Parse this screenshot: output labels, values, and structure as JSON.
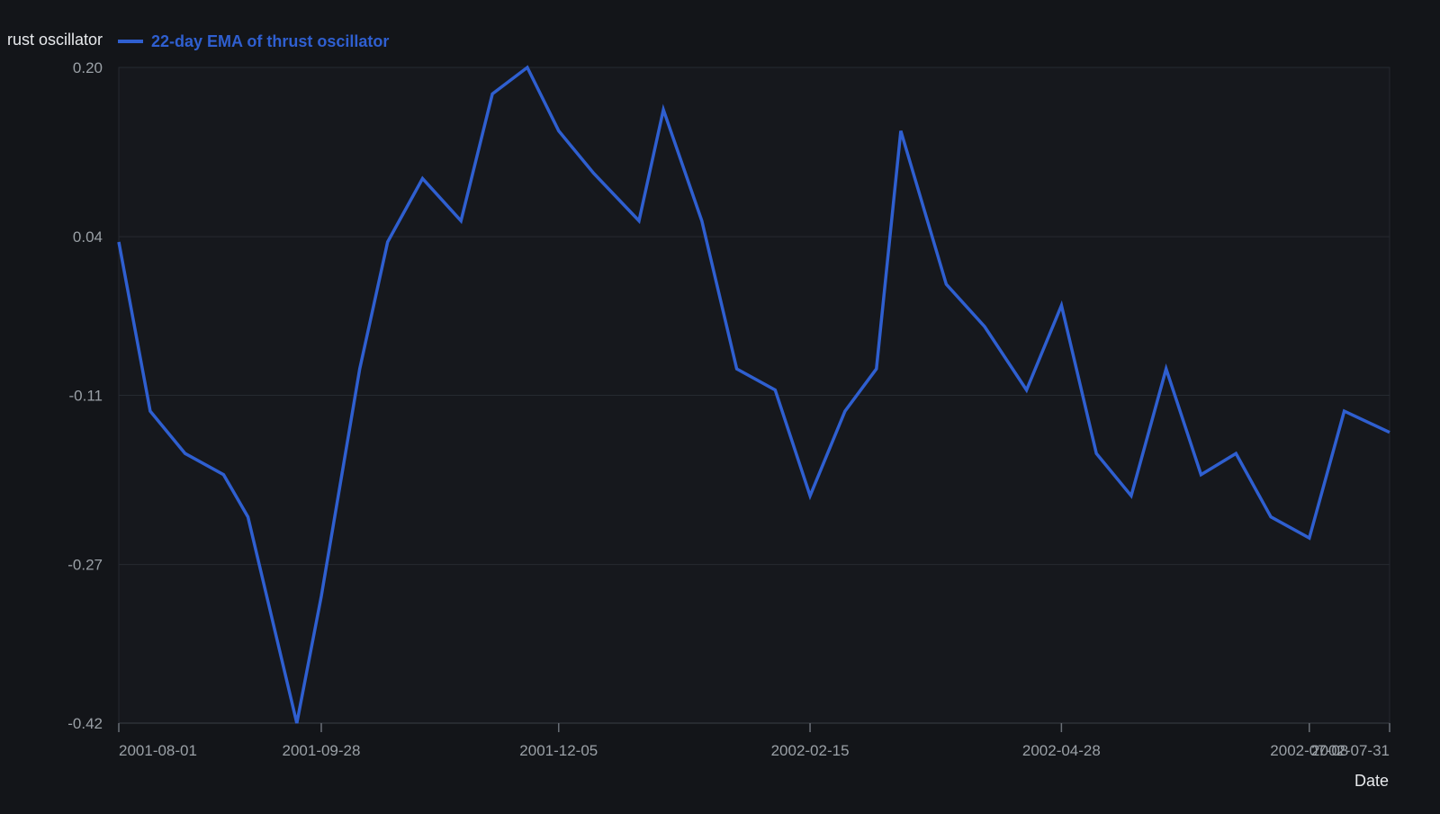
{
  "chart_data": {
    "type": "line",
    "title": "",
    "xlabel": "Date",
    "ylabel": "",
    "x_ticks": [
      "2001-08-01",
      "2001-09-28",
      "2001-12-05",
      "2002-02-15",
      "2002-04-28",
      "2002-07-08",
      "2002-07-31"
    ],
    "y_ticks": [
      0.2,
      0.04,
      -0.11,
      -0.27,
      -0.42
    ],
    "y_tick_labels": [
      "0.20",
      "0.04",
      "-0.11",
      "-0.27",
      "-0.42"
    ],
    "ylim": [
      -0.42,
      0.2
    ],
    "xlim": [
      "2001-08-01",
      "2002-07-31"
    ],
    "grid": "horizontal",
    "legend_position": "top-left",
    "legend": [
      {
        "label": "rust oscillator",
        "partially_visible": true
      },
      {
        "label": "22-day EMA of thrust oscillator"
      }
    ],
    "series": [
      {
        "name": "22-day EMA of thrust oscillator",
        "color": "#2f5fd0",
        "points": [
          {
            "x": "2001-08-01",
            "y": 0.035
          },
          {
            "x": "2001-08-10",
            "y": -0.125
          },
          {
            "x": "2001-08-20",
            "y": -0.165
          },
          {
            "x": "2001-08-31",
            "y": -0.185
          },
          {
            "x": "2001-09-07",
            "y": -0.225
          },
          {
            "x": "2001-09-21",
            "y": -0.42
          },
          {
            "x": "2001-09-28",
            "y": -0.3
          },
          {
            "x": "2001-10-09",
            "y": -0.085
          },
          {
            "x": "2001-10-17",
            "y": 0.035
          },
          {
            "x": "2001-10-27",
            "y": 0.095
          },
          {
            "x": "2001-11-07",
            "y": 0.055
          },
          {
            "x": "2001-11-16",
            "y": 0.175
          },
          {
            "x": "2001-11-26",
            "y": 0.2
          },
          {
            "x": "2001-12-05",
            "y": 0.14
          },
          {
            "x": "2001-12-15",
            "y": 0.1
          },
          {
            "x": "2001-12-28",
            "y": 0.055
          },
          {
            "x": "2002-01-04",
            "y": 0.16
          },
          {
            "x": "2002-01-15",
            "y": 0.055
          },
          {
            "x": "2002-01-25",
            "y": -0.085
          },
          {
            "x": "2002-02-05",
            "y": -0.105
          },
          {
            "x": "2002-02-15",
            "y": -0.205
          },
          {
            "x": "2002-02-25",
            "y": -0.125
          },
          {
            "x": "2002-03-06",
            "y": -0.085
          },
          {
            "x": "2002-03-13",
            "y": 0.14
          },
          {
            "x": "2002-03-26",
            "y": -0.005
          },
          {
            "x": "2002-04-06",
            "y": -0.045
          },
          {
            "x": "2002-04-18",
            "y": -0.105
          },
          {
            "x": "2002-04-28",
            "y": -0.025
          },
          {
            "x": "2002-05-08",
            "y": -0.165
          },
          {
            "x": "2002-05-18",
            "y": -0.205
          },
          {
            "x": "2002-05-28",
            "y": -0.085
          },
          {
            "x": "2002-06-07",
            "y": -0.185
          },
          {
            "x": "2002-06-17",
            "y": -0.165
          },
          {
            "x": "2002-06-27",
            "y": -0.225
          },
          {
            "x": "2002-07-08",
            "y": -0.245
          },
          {
            "x": "2002-07-18",
            "y": -0.125
          },
          {
            "x": "2002-07-31",
            "y": -0.145
          }
        ]
      }
    ]
  }
}
